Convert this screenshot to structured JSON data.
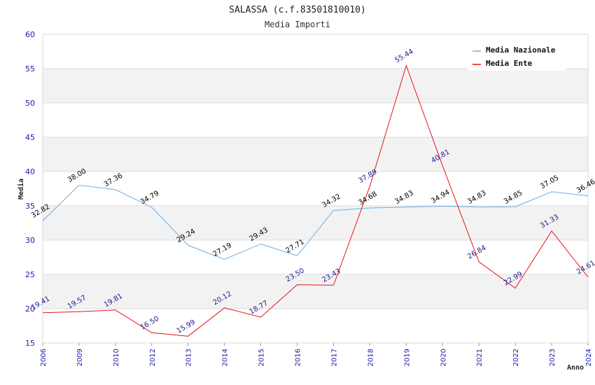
{
  "chart_data": {
    "type": "line",
    "title": "SALASSA (c.f.83501810010)",
    "subtitle": "Media Importi",
    "xlabel": "Anno",
    "ylabel": "Media",
    "ylim": [
      15,
      60
    ],
    "yticks": [
      15,
      20,
      25,
      30,
      35,
      40,
      45,
      50,
      55,
      60
    ],
    "grid": true,
    "legend_position": "top-right",
    "categories": [
      "2006",
      "2009",
      "2010",
      "2012",
      "2013",
      "2014",
      "2015",
      "2016",
      "2017",
      "2018",
      "2019",
      "2020",
      "2021",
      "2022",
      "2023",
      "2024"
    ],
    "series": [
      {
        "name": "Media Nazionale",
        "color": "#6aaee6",
        "label_color": "#000000",
        "values": [
          32.82,
          38.0,
          37.36,
          34.79,
          29.24,
          27.19,
          29.43,
          27.71,
          34.32,
          34.68,
          34.83,
          34.94,
          34.83,
          34.85,
          37.05,
          36.46
        ],
        "labels": [
          "32.82",
          "38.00",
          "37.36",
          "34.79",
          "29.24",
          "27.19",
          "29.43",
          "27.71",
          "34.32",
          "34.68",
          "34.83",
          "34.94",
          "34.83",
          "34.85",
          "37.05",
          "36.46"
        ]
      },
      {
        "name": "Media Ente",
        "color": "#e8141c",
        "label_color": "#1a1a8c",
        "values": [
          19.41,
          19.57,
          19.81,
          16.5,
          15.99,
          20.12,
          18.77,
          23.5,
          23.43,
          37.89,
          55.44,
          40.81,
          26.84,
          22.99,
          31.33,
          24.61
        ],
        "labels": [
          "19.41",
          "19.57",
          "19.81",
          "16.50",
          "15.99",
          "20.12",
          "18.77",
          "23.50",
          "23.43",
          "37.89",
          "55.44",
          "40.81",
          "26.84",
          "22.99",
          "31.33",
          "24.61"
        ]
      }
    ]
  }
}
